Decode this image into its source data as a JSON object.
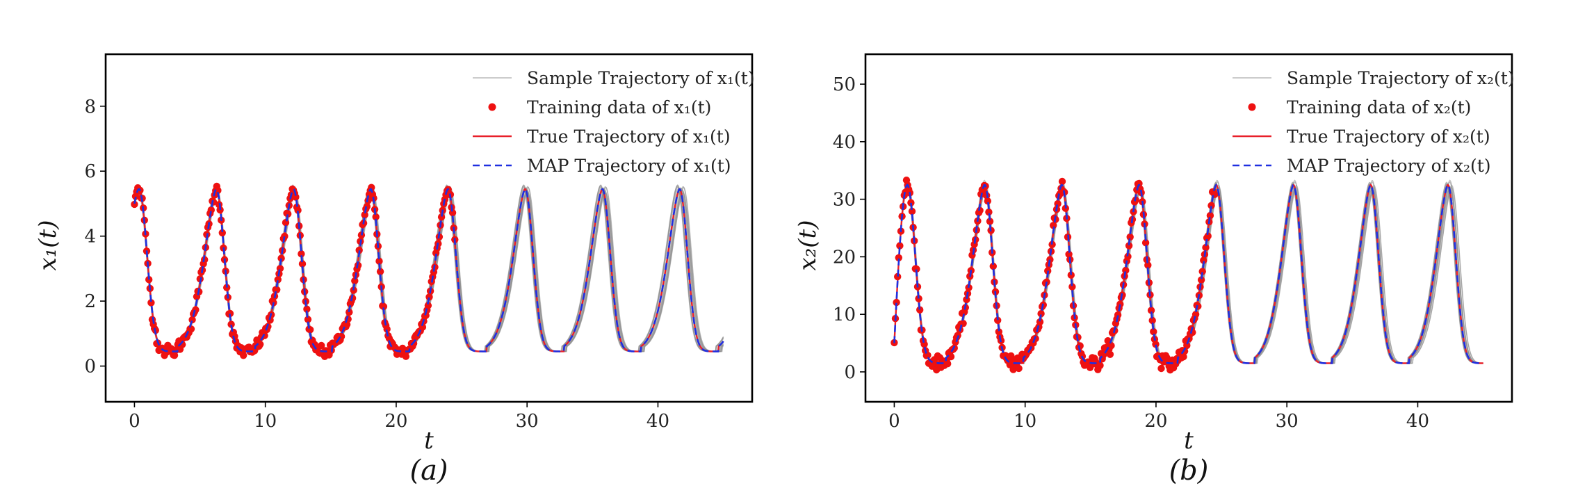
{
  "chart_data": [
    {
      "type": "line",
      "panel_label": "(a)",
      "xlabel": "t",
      "ylabel": "x₁(t)",
      "xlim": [
        -2.2,
        47.2
      ],
      "ylim": [
        -1.1,
        9.6
      ],
      "xticks": [
        0,
        10,
        20,
        30,
        40
      ],
      "yticks": [
        0,
        2,
        4,
        6,
        8
      ],
      "grid": false,
      "legend_position": "top-right",
      "legend": [
        "Sample Trajectory of x₁(t)",
        "Training data of x₁(t)",
        "True Trajectory of x₁(t)",
        "MAP Trajectory of x₁(t)"
      ],
      "model": {
        "x_range": [
          0,
          45
        ],
        "min": 0.45,
        "max": 5.45,
        "period": 5.9,
        "first_peak": 0.35,
        "initial": 5.0
      },
      "training_data_range": [
        0,
        24.5
      ],
      "colors": {
        "sample": "#8c8c8c",
        "training": "#ee1111",
        "true": "#e8202a",
        "map": "#1f2fe0"
      }
    },
    {
      "type": "line",
      "panel_label": "(b)",
      "xlabel": "t",
      "ylabel": "x₂(t)",
      "xlim": [
        -2.2,
        47.2
      ],
      "ylim": [
        -5.2,
        55.2
      ],
      "xticks": [
        0,
        10,
        20,
        30,
        40
      ],
      "yticks": [
        0,
        10,
        20,
        30,
        40,
        50
      ],
      "grid": false,
      "legend_position": "top-right",
      "legend": [
        "Sample Trajectory of x₂(t)",
        "Training data of x₂(t)",
        "True Trajectory of x₂(t)",
        "MAP Trajectory of x₂(t)"
      ],
      "model": {
        "x_range": [
          0,
          45
        ],
        "min": 1.5,
        "max": 32.5,
        "period": 5.9,
        "first_peak": 1.0,
        "initial": 5.0
      },
      "training_data_range": [
        0,
        24.5
      ],
      "colors": {
        "sample": "#8c8c8c",
        "training": "#ee1111",
        "true": "#e8202a",
        "map": "#1f2fe0"
      }
    }
  ]
}
